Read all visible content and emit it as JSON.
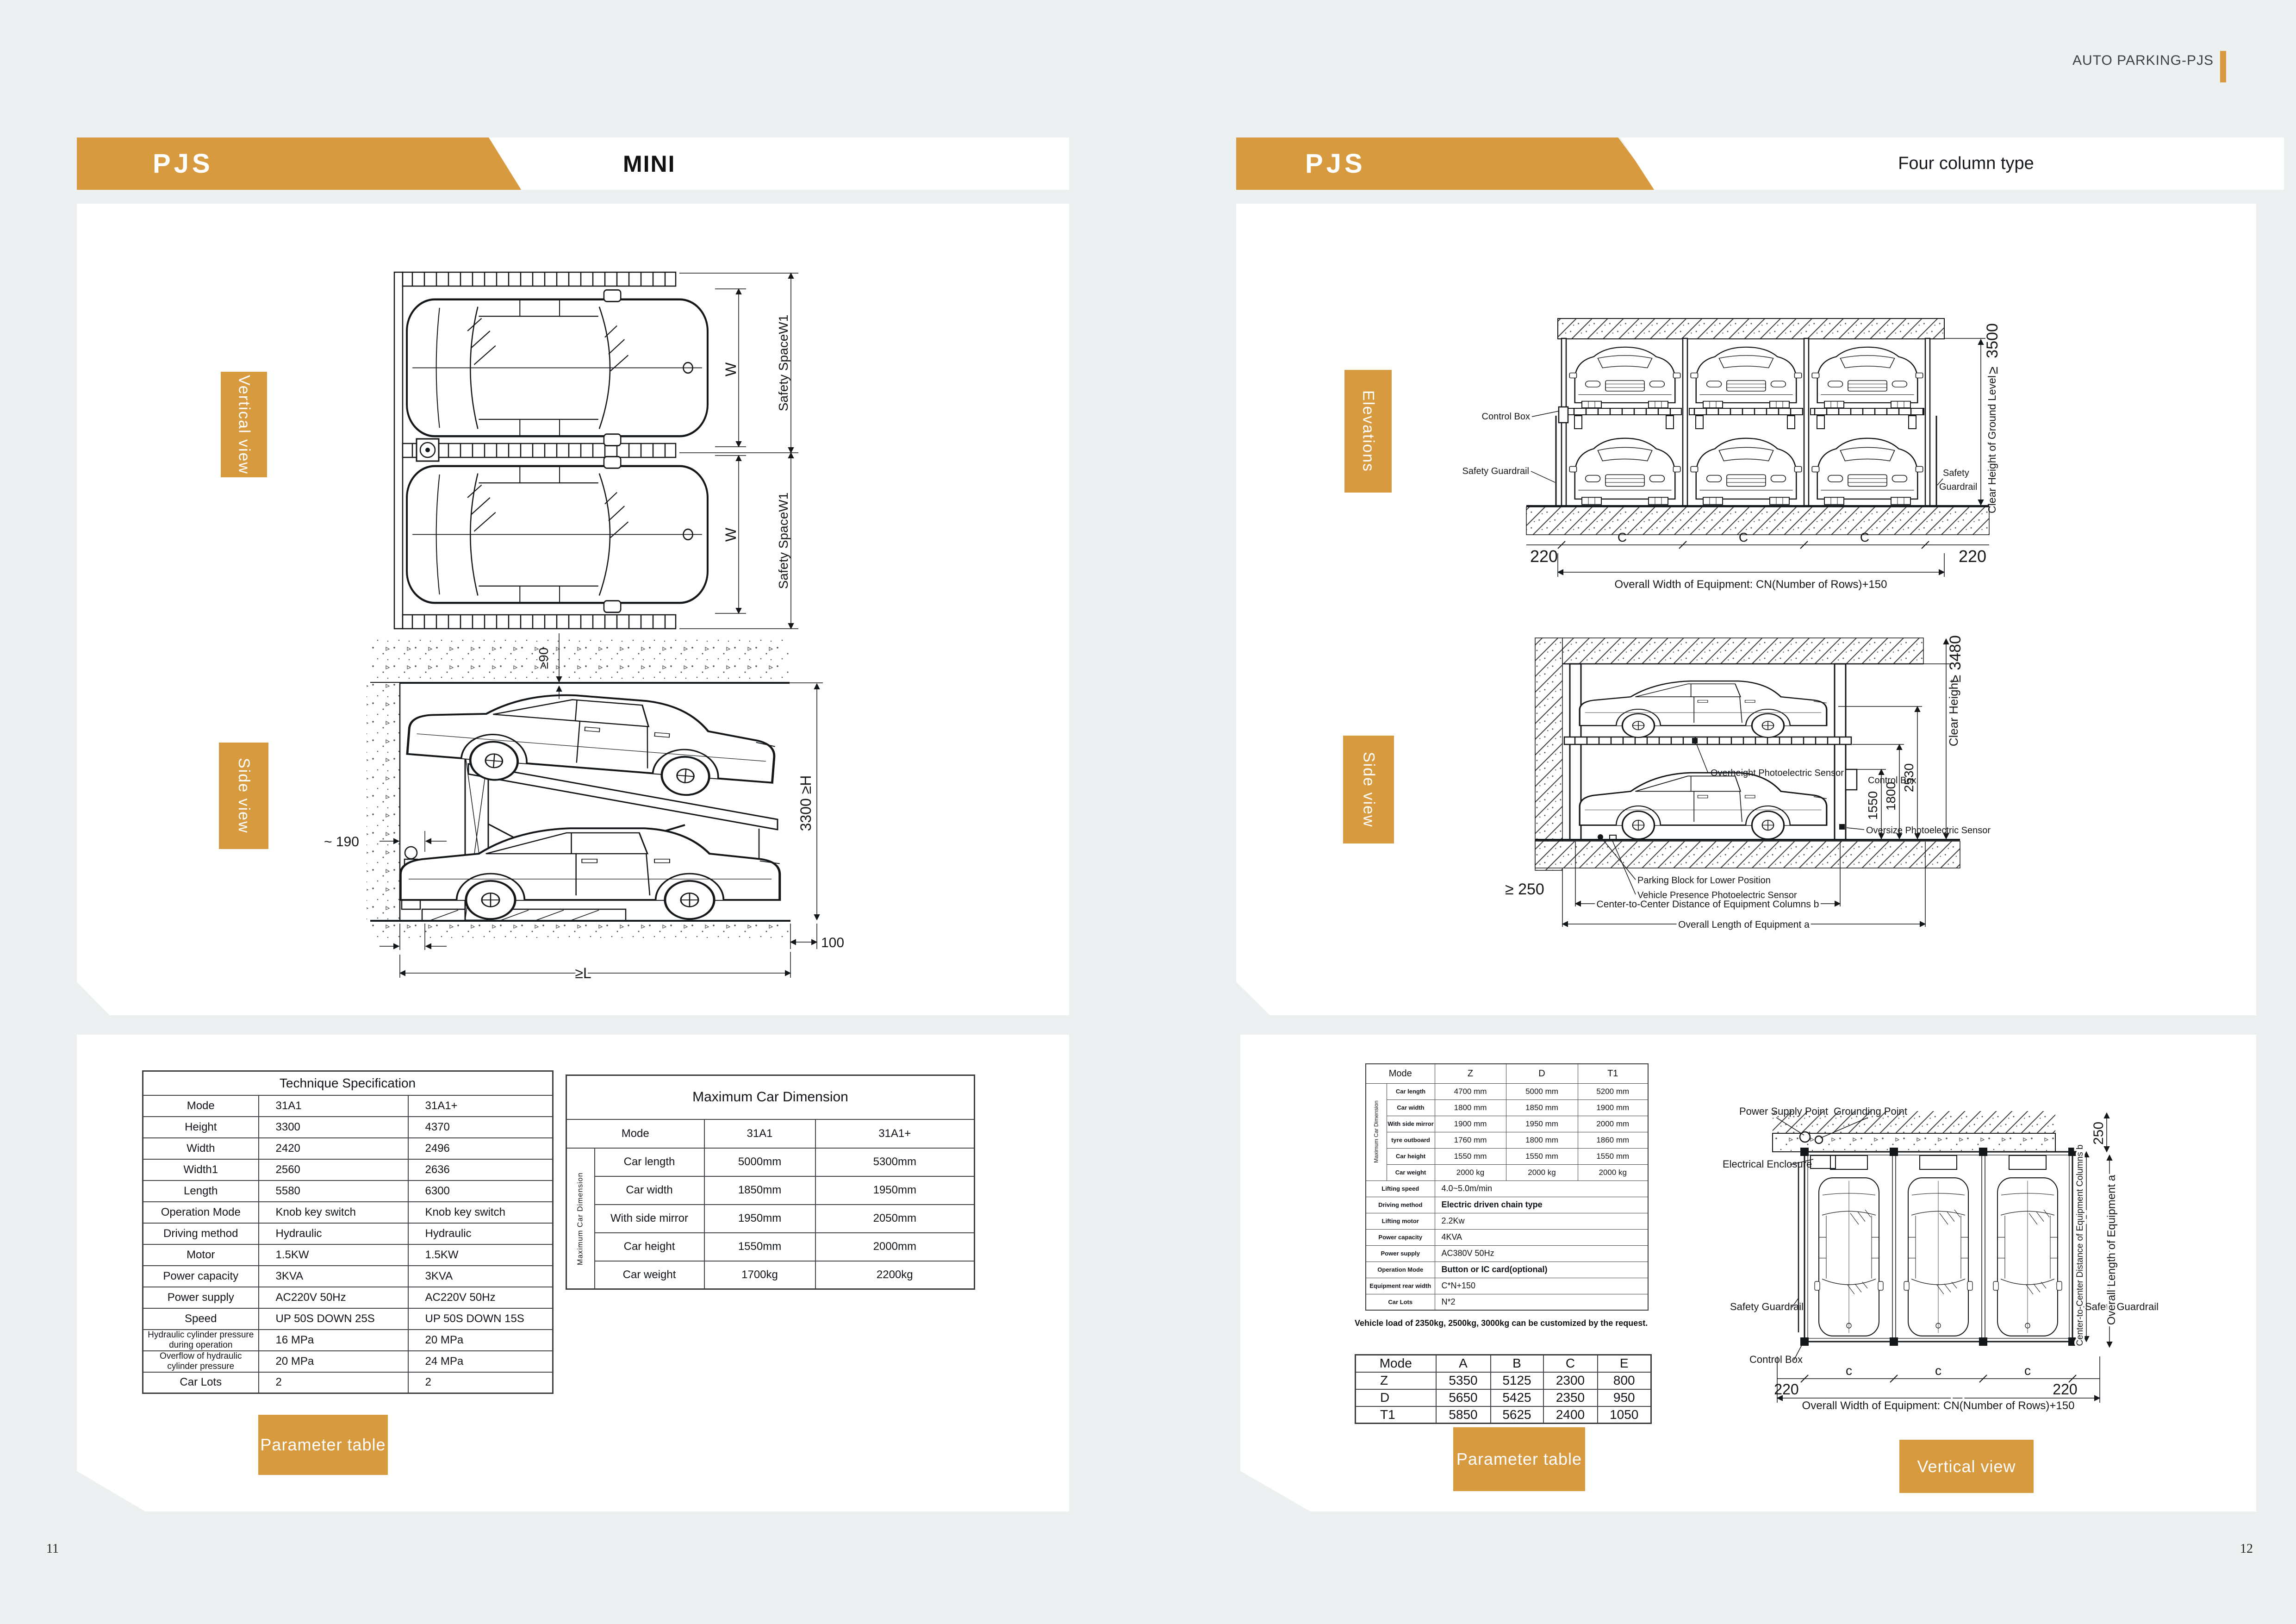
{
  "colors": {
    "accent": "#d89a3e",
    "background": "#edf0f1",
    "panel": "#ffffff",
    "ink": "#14171a"
  },
  "header": {
    "brand": "AUTO PARKING-PJS"
  },
  "left": {
    "ribbon": "PJS",
    "title": "MINI",
    "page_number": "11",
    "tag_vertical": "Vertical view",
    "tag_side": "Side view",
    "tag_param": "Parameter table",
    "vv": {
      "w1": "W",
      "s1": "Safety SpaceW1",
      "w2": "W",
      "s2": "Safety SpaceW1"
    },
    "sv": {
      "gap": "≥90",
      "front": "~ 190",
      "height": "3300 ≥H",
      "rear": "100",
      "length": "≥L"
    },
    "tech_rows": [
      [
        {
          "t": "Technique Specification",
          "c": 3,
          "cls": "title"
        }
      ],
      [
        "Mode",
        "31A1",
        "31A1+"
      ],
      [
        "Height",
        "3300",
        "4370"
      ],
      [
        "Width",
        "2420",
        "2496"
      ],
      [
        "Width1",
        "2560",
        "2636"
      ],
      [
        "Length",
        "5580",
        "6300"
      ],
      [
        "Operation Mode",
        "Knob key switch",
        "Knob key switch"
      ],
      [
        "Driving method",
        "Hydraulic",
        "Hydraulic"
      ],
      [
        "Motor",
        "1.5KW",
        "1.5KW"
      ],
      [
        "Power capacity",
        "3KVA",
        "3KVA"
      ],
      [
        "Power supply",
        "AC220V 50Hz",
        "AC220V 50Hz"
      ],
      [
        "Speed",
        "UP 50S  DOWN 25S",
        "UP 50S  DOWN 15S"
      ],
      [
        {
          "t": "Hydraulic cylinder pressure during operation",
          "cls": "small"
        },
        "16 MPa",
        "20 MPa"
      ],
      [
        {
          "t": "Overflow of hydraulic cylinder pressure",
          "cls": "small"
        },
        "20 MPa",
        "24 MPa"
      ],
      [
        "Car Lots",
        "2",
        "2"
      ]
    ],
    "max_rows": [
      [
        {
          "t": "Maximum Car Dimension",
          "c": 4,
          "cls": "title"
        }
      ],
      [
        {
          "t": "Mode",
          "c": 2
        },
        "31A1",
        "31A1+"
      ],
      [
        {
          "t": "Maximum Car Dimension",
          "r": 5,
          "cls": "vert"
        },
        "Car length",
        "5000mm",
        "5300mm"
      ],
      [
        "Car width",
        "1850mm",
        "1950mm"
      ],
      [
        "With side mirror",
        "1950mm",
        "2050mm"
      ],
      [
        "Car height",
        "1550mm",
        "2000mm"
      ],
      [
        "Car weight",
        "1700kg",
        "2200kg"
      ]
    ]
  },
  "right": {
    "ribbon": "PJS",
    "title": "Four column type",
    "page_number": "12",
    "tag_elev": "Elevations",
    "tag_side": "Side view",
    "tag_param": "Parameter table",
    "tag_vertical": "Vertical view",
    "elev": {
      "control_box": "Control Box",
      "guard_left": "Safety Guardrail",
      "guard_right_1": "Safety",
      "guard_right_2": "Guardrail",
      "clear_height": "Clear Height of Ground Level",
      "geq": "≥",
      "h": "3500",
      "d220l": "220",
      "d220r": "220",
      "c1": "C",
      "c2": "C",
      "c3": "C",
      "overall": "Overall Width of Equipment: CN(Number of Rows)+150"
    },
    "sv": {
      "overheight": "Overheight Photoelectric Sensor",
      "control_box": "Control Box",
      "oversize": "Oversize Photoelectric Sensor",
      "d1": "1550",
      "d2": "1800",
      "d3": "2530",
      "clear": "Clear Height",
      "geq": "≥",
      "h": "3480",
      "floor": "≥ 250",
      "parking": "Parking Block for Lower Position",
      "presence": "Vehicle Presence Photoelectric Sensor",
      "ccd": "Center-to-Center Distance of Equipment Columns b",
      "oal": "Overall Length of Equipment a"
    },
    "vv": {
      "psp": "Power Supply Point",
      "gp": "Grounding Point",
      "ee": "Electrical Enclosure",
      "guard_left": "Safety Guardrail",
      "guard_right": "Safety Guardrail",
      "cb": "Control Box",
      "d250": "250",
      "d220l": "220",
      "d220r": "220",
      "c1": "c",
      "c2": "c",
      "c3": "c",
      "ccd": "Center-to-Center Distance of Equipment Columns b",
      "oal": "Overall Length of Equipment a",
      "overall": "Overall Width of Equipment: CN(Number of Rows)+150"
    },
    "note": "Vehicle load of 2350kg, 2500kg, 3000kg can be customized by the request.",
    "param_rows": [
      [
        {
          "t": "Mode",
          "c": 2,
          "cls": "hdr"
        },
        {
          "t": "Z",
          "cls": "hdr"
        },
        {
          "t": "D",
          "cls": "hdr"
        },
        {
          "t": "T1",
          "cls": "hdr"
        }
      ],
      [
        {
          "t": "Maximum Car Dimension",
          "r": 6,
          "cls": "vert"
        },
        {
          "t": "Car length",
          "cls": "lbl"
        },
        "4700 mm",
        "5000 mm",
        "5200 mm"
      ],
      [
        {
          "t": "Car width",
          "cls": "lbl"
        },
        "1800 mm",
        "1850 mm",
        "1900 mm"
      ],
      [
        {
          "t": "With side mirror",
          "cls": "lbl"
        },
        "1900 mm",
        "1950 mm",
        "2000 mm"
      ],
      [
        {
          "t": "tyre outboard",
          "cls": "lbl"
        },
        "1760 mm",
        "1800 mm",
        "1860 mm"
      ],
      [
        {
          "t": "Car height",
          "cls": "lbl"
        },
        "1550 mm",
        "1550 mm",
        "1550 mm"
      ],
      [
        {
          "t": "Car weight",
          "cls": "lbl"
        },
        "2000 kg",
        "2000 kg",
        "2000 kg"
      ],
      [
        {
          "t": "Lifting speed",
          "c": 2,
          "cls": "lbl"
        },
        {
          "t": "4.0~5.0m/min",
          "c": 3,
          "cls": "lv"
        }
      ],
      [
        {
          "t": "Driving method",
          "c": 2,
          "cls": "lbl"
        },
        {
          "t": "Electric driven chain type",
          "c": 3,
          "cls": "lv b"
        }
      ],
      [
        {
          "t": "Lifting motor",
          "c": 2,
          "cls": "lbl"
        },
        {
          "t": "2.2Kw",
          "c": 3,
          "cls": "lv"
        }
      ],
      [
        {
          "t": "Power capacity",
          "c": 2,
          "cls": "lbl"
        },
        {
          "t": "4KVA",
          "c": 3,
          "cls": "lv"
        }
      ],
      [
        {
          "t": "Power supply",
          "c": 2,
          "cls": "lbl"
        },
        {
          "t": "AC380V  50Hz",
          "c": 3,
          "cls": "lv"
        }
      ],
      [
        {
          "t": "Operation Mode",
          "c": 2,
          "cls": "lbl"
        },
        {
          "t": "Button or IC card(optional)",
          "c": 3,
          "cls": "lv b"
        }
      ],
      [
        {
          "t": "Equipment rear width",
          "c": 2,
          "cls": "lbl"
        },
        {
          "t": "C*N+150",
          "c": 3,
          "cls": "lv"
        }
      ],
      [
        {
          "t": "Car Lots",
          "c": 2,
          "cls": "lbl"
        },
        {
          "t": "N*2",
          "c": 3,
          "cls": "lv"
        }
      ]
    ],
    "abc_rows": [
      [
        "Mode",
        "A",
        "B",
        "C",
        "E"
      ],
      [
        {
          "t": "Z",
          "cls": "ml"
        },
        "5350",
        "5125",
        "2300",
        "800"
      ],
      [
        {
          "t": "D",
          "cls": "ml"
        },
        "5650",
        "5425",
        "2350",
        "950"
      ],
      [
        {
          "t": "T1",
          "cls": "ml"
        },
        "5850",
        "5625",
        "2400",
        "1050"
      ]
    ]
  }
}
